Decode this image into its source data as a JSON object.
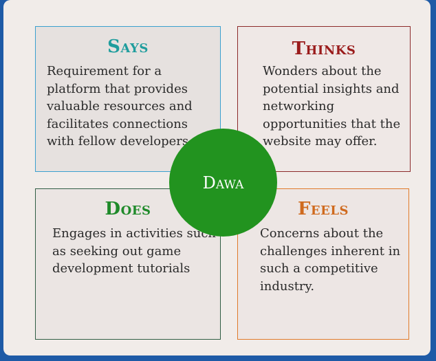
{
  "center": {
    "label": "Dawa"
  },
  "quadrants": {
    "says": {
      "title": "Says",
      "text": "Requirement for a platform that provides valuable resources and facilitates connections with fellow developers."
    },
    "thinks": {
      "title": "Thinks",
      "text": "Wonders about the potential insights and networking opportunities that the website may offer."
    },
    "does": {
      "title": "Does",
      "text": "Engages in activities such as seeking out game development tutorials"
    },
    "feels": {
      "title": "Feels",
      "text": "Concerns about the challenges inherent in such a competitive industry."
    }
  },
  "colors": {
    "says": "#1f9d9d",
    "thinks": "#9a1c1c",
    "does": "#1f8a2a",
    "feels": "#cf6a1e",
    "center": "#22931f",
    "frame_border": "#1e5aa6"
  }
}
